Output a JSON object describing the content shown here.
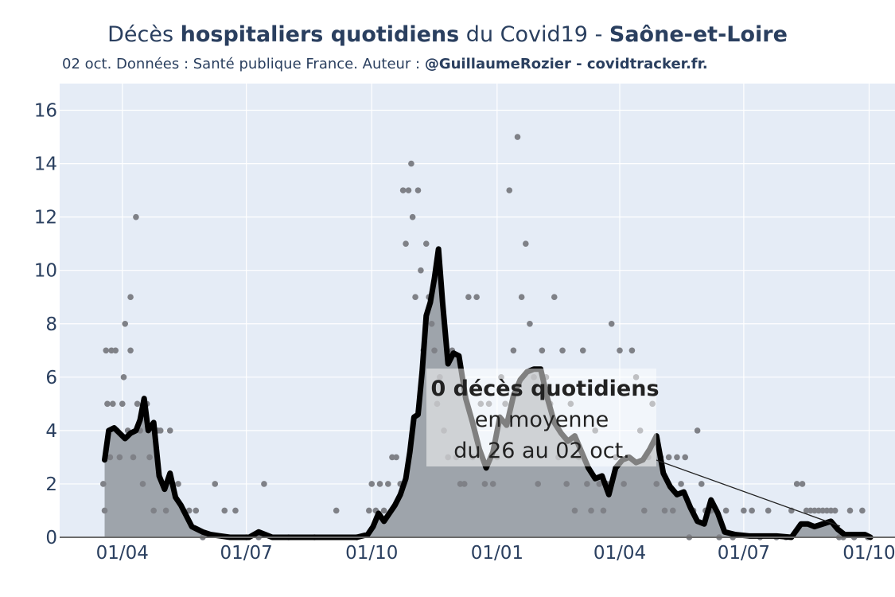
{
  "title": {
    "part1": "Décès ",
    "part2": "hospitaliers quotidiens",
    "part3": " du Covid19 - ",
    "part4": "Saône-et-Loire"
  },
  "subtitle": {
    "part1": "02 oct. Données : Santé publique France. Auteur : ",
    "part2": "@GuillaumeRozier - covidtracker.fr."
  },
  "annotation": {
    "line1": "0 décès quotidiens",
    "line2": "en moyenne",
    "line3": "du 26 au 02 oct."
  },
  "colors": {
    "plot_bg": "#e5ecf6",
    "grid": "#ffffff",
    "area_fill": "#9ea4ab",
    "line": "#000000",
    "dots": "#7f8187"
  },
  "chart_data": {
    "type": "line",
    "x_axis": {
      "type": "date",
      "range": [
        "2020-02-15",
        "2021-10-20"
      ],
      "ticks": [
        {
          "date": "2020-04-01",
          "label": "01/04"
        },
        {
          "date": "2020-07-01",
          "label": "01/07"
        },
        {
          "date": "2020-10-01",
          "label": "01/10"
        },
        {
          "date": "2021-01-01",
          "label": "01/01"
        },
        {
          "date": "2021-04-01",
          "label": "01/04"
        },
        {
          "date": "2021-07-01",
          "label": "01/07"
        },
        {
          "date": "2021-10-01",
          "label": "01/10"
        }
      ]
    },
    "y_axis": {
      "range": [
        0,
        17
      ],
      "ticks": [
        0,
        2,
        4,
        6,
        8,
        10,
        12,
        14,
        16
      ]
    },
    "grid": true,
    "series": [
      {
        "kind": "7-day rolling average (line + filled area)",
        "x": [
          "2020-03-19",
          "2020-03-22",
          "2020-03-26",
          "2020-03-30",
          "2020-04-03",
          "2020-04-07",
          "2020-04-11",
          "2020-04-14",
          "2020-04-17",
          "2020-04-20",
          "2020-04-24",
          "2020-04-28",
          "2020-05-02",
          "2020-05-06",
          "2020-05-10",
          "2020-05-14",
          "2020-05-18",
          "2020-05-22",
          "2020-05-26",
          "2020-05-30",
          "2020-06-05",
          "2020-06-12",
          "2020-06-19",
          "2020-06-26",
          "2020-07-03",
          "2020-07-10",
          "2020-07-20",
          "2020-08-05",
          "2020-08-20",
          "2020-09-05",
          "2020-09-20",
          "2020-09-28",
          "2020-10-02",
          "2020-10-06",
          "2020-10-10",
          "2020-10-14",
          "2020-10-18",
          "2020-10-22",
          "2020-10-26",
          "2020-10-29",
          "2020-11-01",
          "2020-11-04",
          "2020-11-07",
          "2020-11-10",
          "2020-11-13",
          "2020-11-16",
          "2020-11-19",
          "2020-11-22",
          "2020-11-26",
          "2020-11-30",
          "2020-12-04",
          "2020-12-09",
          "2020-12-14",
          "2020-12-19",
          "2020-12-24",
          "2020-12-29",
          "2021-01-03",
          "2021-01-08",
          "2021-01-13",
          "2021-01-18",
          "2021-01-23",
          "2021-01-28",
          "2021-02-02",
          "2021-02-07",
          "2021-02-12",
          "2021-02-17",
          "2021-02-22",
          "2021-02-27",
          "2021-03-04",
          "2021-03-09",
          "2021-03-14",
          "2021-03-19",
          "2021-03-24",
          "2021-03-29",
          "2021-04-03",
          "2021-04-08",
          "2021-04-13",
          "2021-04-18",
          "2021-04-23",
          "2021-04-28",
          "2021-05-03",
          "2021-05-08",
          "2021-05-13",
          "2021-05-18",
          "2021-05-23",
          "2021-05-28",
          "2021-06-02",
          "2021-06-07",
          "2021-06-12",
          "2021-06-17",
          "2021-06-25",
          "2021-07-05",
          "2021-07-15",
          "2021-07-25",
          "2021-08-05",
          "2021-08-12",
          "2021-08-17",
          "2021-08-22",
          "2021-08-28",
          "2021-09-03",
          "2021-09-08",
          "2021-09-13",
          "2021-09-18",
          "2021-09-23",
          "2021-09-28",
          "2021-10-02"
        ],
        "values": [
          2.9,
          4.0,
          4.1,
          3.9,
          3.7,
          3.9,
          4.0,
          4.4,
          5.2,
          4.0,
          4.3,
          2.3,
          1.8,
          2.4,
          1.5,
          1.2,
          0.8,
          0.4,
          0.3,
          0.2,
          0.1,
          0.05,
          0.0,
          0.0,
          0.0,
          0.2,
          0.0,
          0.0,
          0.0,
          0.0,
          0.0,
          0.1,
          0.4,
          0.9,
          0.6,
          0.9,
          1.2,
          1.6,
          2.2,
          3.2,
          4.5,
          4.6,
          6.2,
          8.3,
          8.8,
          9.7,
          10.8,
          8.8,
          6.5,
          6.9,
          6.8,
          5.2,
          4.3,
          3.3,
          2.6,
          3.2,
          4.5,
          4.2,
          5.3,
          5.9,
          6.2,
          6.3,
          6.3,
          5.2,
          4.3,
          3.9,
          3.6,
          3.8,
          3.2,
          2.6,
          2.2,
          2.3,
          1.6,
          2.6,
          2.9,
          3.0,
          2.8,
          2.9,
          3.3,
          3.8,
          2.4,
          1.9,
          1.6,
          1.7,
          1.1,
          0.6,
          0.5,
          1.4,
          0.9,
          0.2,
          0.1,
          0.05,
          0.05,
          0.05,
          0.0,
          0.5,
          0.5,
          0.4,
          0.5,
          0.6,
          0.3,
          0.1,
          0.1,
          0.1,
          0.1,
          0.0
        ]
      },
      {
        "kind": "daily deaths (dots)",
        "points": [
          [
            "2020-03-18",
            2
          ],
          [
            "2020-03-19",
            1
          ],
          [
            "2020-03-20",
            7
          ],
          [
            "2020-03-21",
            5
          ],
          [
            "2020-03-23",
            3
          ],
          [
            "2020-03-24",
            7
          ],
          [
            "2020-03-25",
            5
          ],
          [
            "2020-03-27",
            7
          ],
          [
            "2020-03-28",
            4
          ],
          [
            "2020-03-30",
            3
          ],
          [
            "2020-04-01",
            5
          ],
          [
            "2020-04-02",
            6
          ],
          [
            "2020-04-03",
            8
          ],
          [
            "2020-04-05",
            4
          ],
          [
            "2020-04-07",
            9
          ],
          [
            "2020-04-07",
            7
          ],
          [
            "2020-04-09",
            3
          ],
          [
            "2020-04-11",
            12
          ],
          [
            "2020-04-12",
            5
          ],
          [
            "2020-04-14",
            4
          ],
          [
            "2020-04-16",
            2
          ],
          [
            "2020-04-19",
            5
          ],
          [
            "2020-04-21",
            3
          ],
          [
            "2020-04-24",
            1
          ],
          [
            "2020-04-27",
            4
          ],
          [
            "2020-04-29",
            4
          ],
          [
            "2020-05-01",
            2
          ],
          [
            "2020-05-03",
            1
          ],
          [
            "2020-05-06",
            4
          ],
          [
            "2020-05-08",
            2
          ],
          [
            "2020-05-12",
            2
          ],
          [
            "2020-05-16",
            1
          ],
          [
            "2020-05-20",
            1
          ],
          [
            "2020-05-25",
            1
          ],
          [
            "2020-05-30",
            0
          ],
          [
            "2020-06-08",
            2
          ],
          [
            "2020-06-15",
            1
          ],
          [
            "2020-06-23",
            1
          ],
          [
            "2020-07-01",
            0
          ],
          [
            "2020-07-10",
            0
          ],
          [
            "2020-07-14",
            2
          ],
          [
            "2020-08-01",
            0
          ],
          [
            "2020-08-20",
            0
          ],
          [
            "2020-09-05",
            1
          ],
          [
            "2020-09-20",
            0
          ],
          [
            "2020-09-29",
            1
          ],
          [
            "2020-10-01",
            2
          ],
          [
            "2020-10-04",
            1
          ],
          [
            "2020-10-07",
            2
          ],
          [
            "2020-10-10",
            1
          ],
          [
            "2020-10-13",
            2
          ],
          [
            "2020-10-16",
            3
          ],
          [
            "2020-10-19",
            3
          ],
          [
            "2020-10-22",
            2
          ],
          [
            "2020-10-24",
            13
          ],
          [
            "2020-10-26",
            11
          ],
          [
            "2020-10-28",
            13
          ],
          [
            "2020-10-30",
            14
          ],
          [
            "2020-10-31",
            12
          ],
          [
            "2020-11-02",
            9
          ],
          [
            "2020-11-04",
            13
          ],
          [
            "2020-11-06",
            10
          ],
          [
            "2020-11-08",
            7
          ],
          [
            "2020-11-10",
            11
          ],
          [
            "2020-11-12",
            9
          ],
          [
            "2020-11-14",
            8
          ],
          [
            "2020-11-16",
            7
          ],
          [
            "2020-11-18",
            5
          ],
          [
            "2020-11-20",
            6
          ],
          [
            "2020-11-23",
            4
          ],
          [
            "2020-11-26",
            3
          ],
          [
            "2020-11-29",
            7
          ],
          [
            "2020-12-02",
            3
          ],
          [
            "2020-12-05",
            2
          ],
          [
            "2020-12-08",
            2
          ],
          [
            "2020-12-11",
            9
          ],
          [
            "2020-12-14",
            3
          ],
          [
            "2020-12-17",
            9
          ],
          [
            "2020-12-20",
            5
          ],
          [
            "2020-12-23",
            2
          ],
          [
            "2020-12-26",
            5
          ],
          [
            "2020-12-29",
            2
          ],
          [
            "2021-01-01",
            3
          ],
          [
            "2021-01-04",
            6
          ],
          [
            "2021-01-07",
            5
          ],
          [
            "2021-01-10",
            13
          ],
          [
            "2021-01-13",
            7
          ],
          [
            "2021-01-16",
            15
          ],
          [
            "2021-01-19",
            9
          ],
          [
            "2021-01-22",
            11
          ],
          [
            "2021-01-25",
            8
          ],
          [
            "2021-01-28",
            6
          ],
          [
            "2021-01-31",
            2
          ],
          [
            "2021-02-03",
            7
          ],
          [
            "2021-02-06",
            6
          ],
          [
            "2021-02-09",
            5
          ],
          [
            "2021-02-12",
            9
          ],
          [
            "2021-02-15",
            3
          ],
          [
            "2021-02-18",
            7
          ],
          [
            "2021-02-21",
            2
          ],
          [
            "2021-02-24",
            5
          ],
          [
            "2021-02-27",
            1
          ],
          [
            "2021-03-02",
            3
          ],
          [
            "2021-03-05",
            7
          ],
          [
            "2021-03-08",
            2
          ],
          [
            "2021-03-11",
            1
          ],
          [
            "2021-03-14",
            4
          ],
          [
            "2021-03-17",
            2
          ],
          [
            "2021-03-20",
            1
          ],
          [
            "2021-03-23",
            2
          ],
          [
            "2021-03-26",
            8
          ],
          [
            "2021-03-29",
            3
          ],
          [
            "2021-04-01",
            7
          ],
          [
            "2021-04-04",
            2
          ],
          [
            "2021-04-07",
            3
          ],
          [
            "2021-04-10",
            7
          ],
          [
            "2021-04-13",
            6
          ],
          [
            "2021-04-16",
            4
          ],
          [
            "2021-04-19",
            1
          ],
          [
            "2021-04-22",
            3
          ],
          [
            "2021-04-25",
            5
          ],
          [
            "2021-04-28",
            2
          ],
          [
            "2021-05-01",
            3
          ],
          [
            "2021-05-04",
            1
          ],
          [
            "2021-05-07",
            3
          ],
          [
            "2021-05-10",
            1
          ],
          [
            "2021-05-13",
            3
          ],
          [
            "2021-05-16",
            2
          ],
          [
            "2021-05-19",
            3
          ],
          [
            "2021-05-22",
            0
          ],
          [
            "2021-05-25",
            1
          ],
          [
            "2021-05-28",
            4
          ],
          [
            "2021-05-31",
            2
          ],
          [
            "2021-06-03",
            1
          ],
          [
            "2021-06-07",
            1
          ],
          [
            "2021-06-13",
            0
          ],
          [
            "2021-06-18",
            1
          ],
          [
            "2021-06-23",
            0
          ],
          [
            "2021-07-01",
            1
          ],
          [
            "2021-07-07",
            1
          ],
          [
            "2021-07-13",
            0
          ],
          [
            "2021-07-19",
            1
          ],
          [
            "2021-07-25",
            0
          ],
          [
            "2021-08-01",
            0
          ],
          [
            "2021-08-05",
            1
          ],
          [
            "2021-08-09",
            2
          ],
          [
            "2021-08-13",
            2
          ],
          [
            "2021-08-16",
            1
          ],
          [
            "2021-08-19",
            1
          ],
          [
            "2021-08-22",
            1
          ],
          [
            "2021-08-25",
            1
          ],
          [
            "2021-08-28",
            1
          ],
          [
            "2021-08-31",
            1
          ],
          [
            "2021-09-03",
            1
          ],
          [
            "2021-09-06",
            1
          ],
          [
            "2021-09-09",
            0
          ],
          [
            "2021-09-12",
            0
          ],
          [
            "2021-09-17",
            1
          ],
          [
            "2021-09-20",
            0
          ],
          [
            "2021-09-26",
            1
          ],
          [
            "2021-09-30",
            0
          ]
        ]
      }
    ]
  }
}
